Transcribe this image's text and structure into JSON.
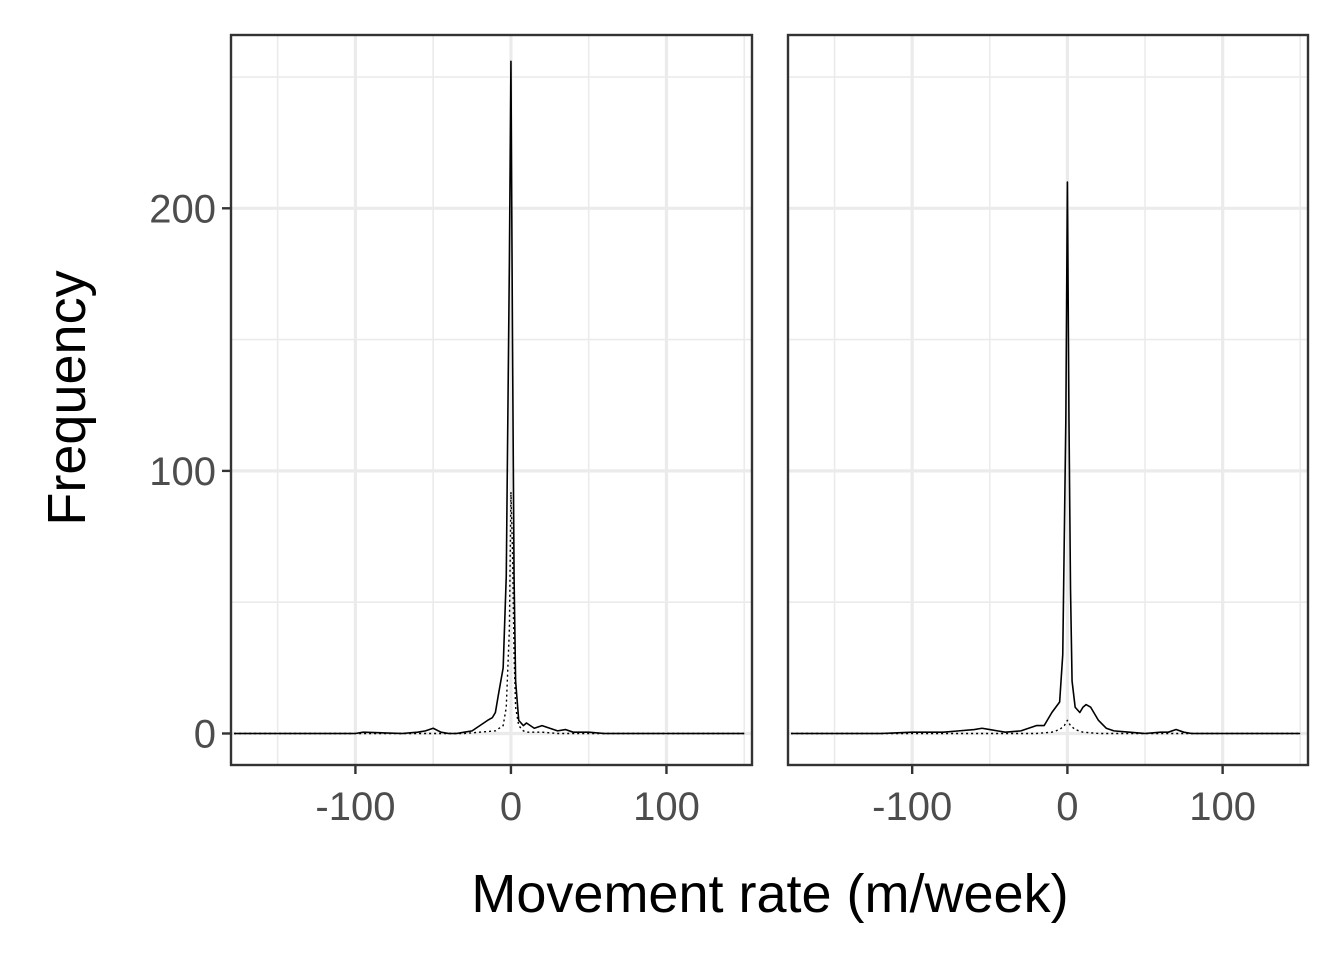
{
  "chart_data": {
    "type": "line",
    "facets": 2,
    "xlabel": "Movement rate (m/week)",
    "ylabel": "Frequency",
    "xlim": [
      -180,
      155
    ],
    "ylim": [
      -12,
      266
    ],
    "x_ticks": [
      -100,
      0,
      100
    ],
    "x_tick_labels": [
      "-100",
      "0",
      "100"
    ],
    "y_ticks": [
      0,
      100,
      200
    ],
    "y_tick_labels": [
      "0",
      "100",
      "200"
    ],
    "grid": true,
    "legend": "none",
    "panels": [
      {
        "series": [
          {
            "style": "solid",
            "x": [
              -178,
              -150,
              -120,
              -100,
              -95,
              -70,
              -60,
              -55,
              -50,
              -45,
              -40,
              -35,
              -30,
              -25,
              -20,
              -15,
              -12,
              -10,
              -8,
              -5,
              -3,
              -1,
              0,
              1,
              2,
              3,
              5,
              8,
              10,
              15,
              20,
              25,
              30,
              35,
              40,
              50,
              60,
              80,
              100,
              120,
              150
            ],
            "y": [
              0,
              0,
              0,
              0,
              0.5,
              0,
              0.5,
              1,
              2,
              0.5,
              0,
              0,
              0.5,
              1,
              3,
              5,
              6,
              8,
              15,
              25,
              60,
              180,
              256,
              150,
              60,
              20,
              5,
              3,
              4,
              2,
              3,
              2,
              1,
              1.5,
              0.5,
              0.5,
              0,
              0,
              0,
              0,
              0
            ]
          },
          {
            "style": "dotted",
            "x": [
              -178,
              -50,
              -30,
              -20,
              -10,
              -5,
              -3,
              -1,
              0,
              1,
              2,
              3,
              5,
              8,
              10,
              20,
              30,
              50,
              150
            ],
            "y": [
              0,
              0,
              0,
              0.5,
              1,
              3,
              10,
              40,
              92,
              70,
              30,
              10,
              3,
              1,
              0.5,
              0.5,
              0,
              0,
              0
            ]
          }
        ]
      },
      {
        "series": [
          {
            "style": "solid",
            "x": [
              -178,
              -150,
              -120,
              -100,
              -90,
              -80,
              -70,
              -60,
              -55,
              -50,
              -45,
              -40,
              -30,
              -25,
              -20,
              -15,
              -10,
              -5,
              -3,
              -1,
              0,
              1,
              2,
              3,
              5,
              8,
              10,
              12,
              15,
              20,
              25,
              30,
              40,
              50,
              60,
              65,
              70,
              75,
              80,
              100,
              120,
              150
            ],
            "y": [
              0,
              0,
              0,
              0.5,
              0.5,
              0.5,
              1,
              1.5,
              2,
              1.5,
              1,
              0.5,
              1,
              2,
              3,
              3,
              8,
              12,
              30,
              120,
              210,
              120,
              55,
              20,
              10,
              8,
              10,
              11,
              10,
              5,
              2,
              1,
              0.5,
              0,
              0.5,
              0.5,
              1.5,
              0.5,
              0,
              0,
              0,
              0
            ]
          },
          {
            "style": "dotted",
            "x": [
              -178,
              -40,
              -20,
              -10,
              -5,
              -2,
              0,
              2,
              5,
              10,
              20,
              40,
              150
            ],
            "y": [
              0,
              0,
              0,
              0.5,
              1.5,
              3,
              5,
              3,
              1.5,
              0.5,
              0,
              0,
              0
            ]
          }
        ]
      }
    ]
  }
}
